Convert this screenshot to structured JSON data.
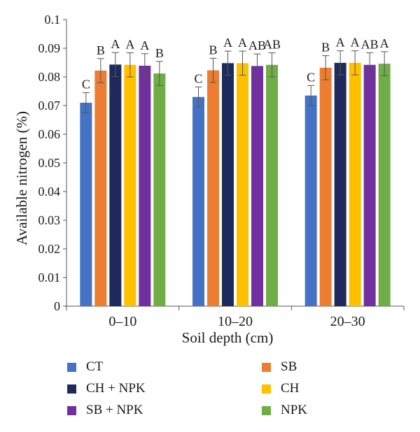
{
  "chart_data": {
    "type": "bar",
    "xlabel": "Soil depth (cm)",
    "ylabel": "Available nitrogen (%)",
    "ylim": [
      0,
      0.1
    ],
    "yticks": [
      "0",
      "0.01",
      "0.02",
      "0.03",
      "0.04",
      "0.05",
      "0.06",
      "0.07",
      "0.08",
      "0.09",
      "0.1"
    ],
    "categories": [
      "0–10",
      "10–20",
      "20–30"
    ],
    "error_bars": true,
    "grid": false,
    "legend_position": "bottom",
    "series": [
      {
        "name": "CT",
        "color": "#4472c4",
        "values": [
          0.071,
          0.073,
          0.0735
        ],
        "errors": [
          0.0035,
          0.0035,
          0.0035
        ],
        "labels": [
          "C",
          "C",
          "C"
        ]
      },
      {
        "name": "SB",
        "color": "#ed7d31",
        "values": [
          0.0822,
          0.0823,
          0.0832
        ],
        "errors": [
          0.0042,
          0.0042,
          0.0042
        ],
        "labels": [
          "B",
          "B",
          "B"
        ]
      },
      {
        "name": "CH + NPK",
        "color": "#1f2a5c",
        "values": [
          0.0843,
          0.0848,
          0.0849
        ],
        "errors": [
          0.0042,
          0.0042,
          0.0042
        ],
        "labels": [
          "A",
          "A",
          "A"
        ]
      },
      {
        "name": "CH",
        "color": "#ffc000",
        "values": [
          0.0842,
          0.0848,
          0.0849
        ],
        "errors": [
          0.0042,
          0.0042,
          0.0042
        ],
        "labels": [
          "A",
          "A",
          "A"
        ]
      },
      {
        "name": "SB + NPK",
        "color": "#7030a0",
        "values": [
          0.0839,
          0.0838,
          0.0842
        ],
        "errors": [
          0.0042,
          0.0042,
          0.0042
        ],
        "labels": [
          "A",
          "AB",
          "AB"
        ]
      },
      {
        "name": "NPK",
        "color": "#70ad47",
        "values": [
          0.0812,
          0.0842,
          0.0846
        ],
        "errors": [
          0.0042,
          0.0042,
          0.0042
        ],
        "labels": [
          "B",
          "AB",
          "A"
        ]
      }
    ]
  }
}
